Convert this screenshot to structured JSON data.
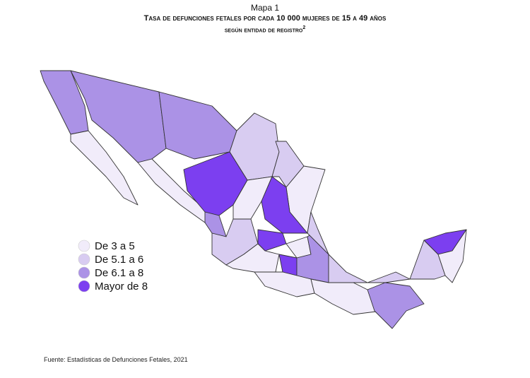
{
  "header": {
    "label": "Mapa 1",
    "title_line1": "Tasa de defunciones fetales por cada 10 000 mujeres de 15 a 49 años",
    "title_line2": "según entidad de registro",
    "title_note": "2"
  },
  "legend": {
    "items": [
      {
        "label": "De 3 a 5",
        "color": "#f1ecfa"
      },
      {
        "label": "De 5.1 a 6",
        "color": "#d8ccf1"
      },
      {
        "label": "De 6.1 a 8",
        "color": "#ab92e6"
      },
      {
        "label": "Mayor de 8",
        "color": "#7c3ff0"
      }
    ]
  },
  "source": "Fuente: Estadísticas de Defunciones Fetales, 2021"
}
